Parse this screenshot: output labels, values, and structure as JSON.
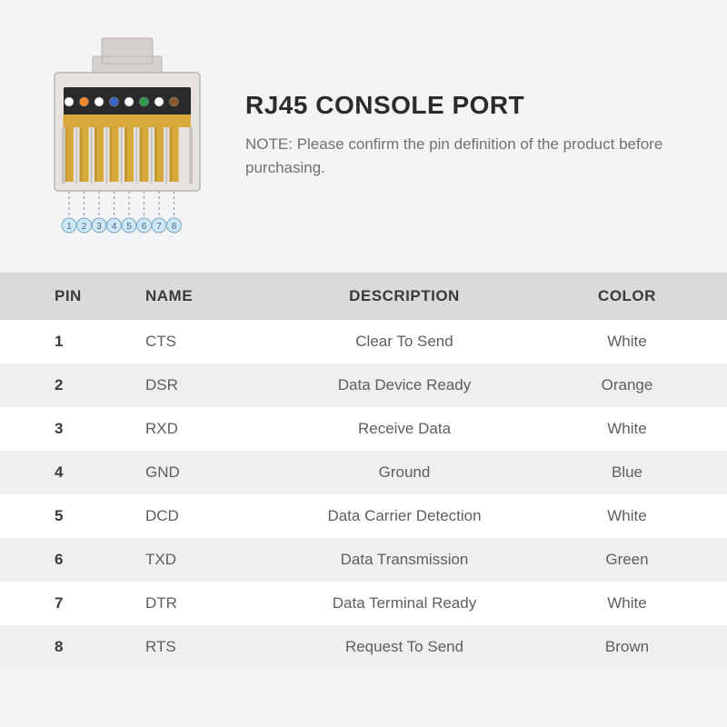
{
  "colors": {
    "page_bg": "#f3f4f5",
    "header_row_bg": "#d9dadb",
    "row_odd_bg": "#ffffff",
    "row_even_bg": "#eeefef",
    "title_color": "#2b2b2b",
    "note_color": "#6f7172",
    "header_text": "#3a3a3a",
    "body_text": "#5c5e5f",
    "pin_text": "#3a3a3a"
  },
  "header": {
    "title": "RJ45 CONSOLE PORT",
    "note_label": "NOTE:",
    "note_text": "Please confirm the pin definition of the product before purchasing."
  },
  "connector": {
    "body_fill": "#e6e2df",
    "body_stroke": "#b8b4b1",
    "clip_fill": "#d4d0cd",
    "inner_dark": "#2a2a2a",
    "gold": "#d6a93a",
    "gold_dark": "#b08a28",
    "pin_wire_colors": [
      "#ffffff",
      "#f08a2a",
      "#ffffff",
      "#3a62c8",
      "#ffffff",
      "#2a9a4a",
      "#ffffff",
      "#8a5a2a"
    ],
    "pin_label_bg": "#cfe7f4",
    "pin_label_border": "#7aa8c2",
    "pin_label_text": "#4a6a86",
    "pin_labels": [
      "1",
      "2",
      "3",
      "4",
      "5",
      "6",
      "7",
      "8"
    ],
    "dash_color": "#9aa0a4"
  },
  "table": {
    "columns": [
      "PIN",
      "NAME",
      "DESCRIPTION",
      "COLOR"
    ],
    "rows": [
      {
        "pin": "1",
        "name": "CTS",
        "description": "Clear To Send",
        "color": "White"
      },
      {
        "pin": "2",
        "name": "DSR",
        "description": "Data Device Ready",
        "color": "Orange"
      },
      {
        "pin": "3",
        "name": "RXD",
        "description": "Receive Data",
        "color": "White"
      },
      {
        "pin": "4",
        "name": "GND",
        "description": "Ground",
        "color": "Blue"
      },
      {
        "pin": "5",
        "name": "DCD",
        "description": "Data Carrier Detection",
        "color": "White"
      },
      {
        "pin": "6",
        "name": "TXD",
        "description": "Data Transmission",
        "color": "Green"
      },
      {
        "pin": "7",
        "name": "DTR",
        "description": "Data Terminal Ready",
        "color": "White"
      },
      {
        "pin": "8",
        "name": "RTS",
        "description": "Request To Send",
        "color": "Brown"
      }
    ]
  }
}
